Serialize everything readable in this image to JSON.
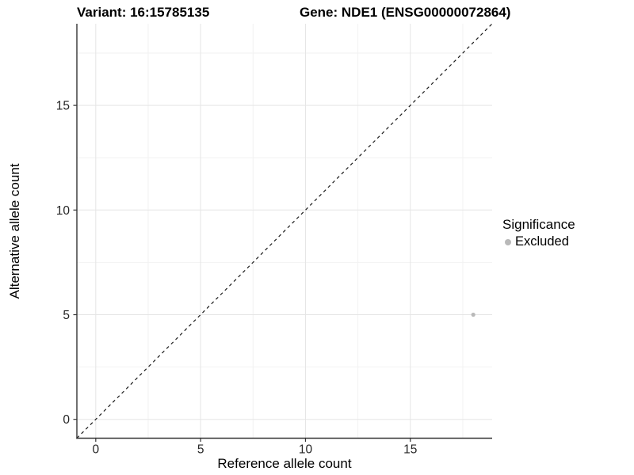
{
  "titles": {
    "variant": "Variant: 16:15785135",
    "gene": "Gene: NDE1 (ENSG00000072864)"
  },
  "axes": {
    "x_label": "Reference allele count",
    "y_label": "Alternative allele count"
  },
  "legend": {
    "title": "Significance",
    "items": [
      {
        "label": "Excluded",
        "color": "#b9b9b9"
      }
    ]
  },
  "colors": {
    "background": "#ffffff",
    "grid_major": "#e5e5e5",
    "grid_minor": "#f2f2f2",
    "axis_line": "#333333",
    "tick_text": "#262626",
    "reference_line": "#1a1a1a",
    "point": "#b9b9b9"
  },
  "chart_data": {
    "type": "scatter",
    "title": "Variant: 16:15785135    Gene: NDE1 (ENSG00000072864)",
    "xlabel": "Reference allele count",
    "ylabel": "Alternative allele count",
    "xlim": [
      -0.9,
      18.9
    ],
    "ylim": [
      -0.9,
      18.9
    ],
    "x_ticks": [
      0,
      5,
      10,
      15
    ],
    "y_ticks": [
      0,
      5,
      10,
      15
    ],
    "x_minor_ticks": [
      2.5,
      7.5,
      12.5,
      17.5
    ],
    "y_minor_ticks": [
      2.5,
      7.5,
      12.5,
      17.5
    ],
    "grid": true,
    "legend_position": "right",
    "series": [
      {
        "name": "Excluded",
        "color": "#b9b9b9",
        "points": [
          {
            "x": 18,
            "y": 5
          }
        ]
      }
    ],
    "reference_line": {
      "kind": "identity",
      "from": [
        -0.9,
        -0.9
      ],
      "to": [
        18.9,
        18.9
      ],
      "style": "dashed",
      "color": "#1a1a1a"
    }
  }
}
